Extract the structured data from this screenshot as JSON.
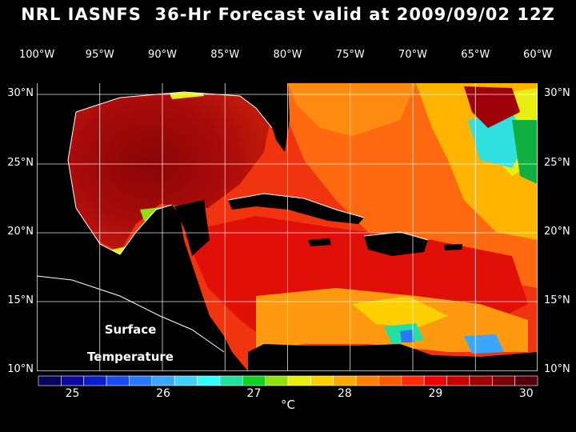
{
  "title": "NRL IASNFS  36-Hr Forecast valid at 2009/09/02 12Z",
  "lon_labels": [
    "100°W",
    "95°W",
    "90°W",
    "85°W",
    "80°W",
    "75°W",
    "70°W",
    "65°W",
    "60°W"
  ],
  "lat_labels": [
    "30°N",
    "25°N",
    "20°N",
    "15°N",
    "10°N"
  ],
  "map_label": {
    "line1": "Surface",
    "line2": "Temperature"
  },
  "colorbar": {
    "tick_labels": [
      "25",
      "26",
      "27",
      "28",
      "29",
      "30"
    ],
    "unit": "°C",
    "colors": [
      "#06045e",
      "#0a0a9e",
      "#0a1ccc",
      "#1a4bf0",
      "#2a78ff",
      "#3aa6ff",
      "#40d0ff",
      "#30ffff",
      "#20e0a0",
      "#10d020",
      "#90e010",
      "#e8ee10",
      "#ffd000",
      "#ffa800",
      "#ff8000",
      "#ff5800",
      "#ff2a00",
      "#f00000",
      "#cc0000",
      "#a00000",
      "#7a0008",
      "#58000a"
    ]
  }
}
